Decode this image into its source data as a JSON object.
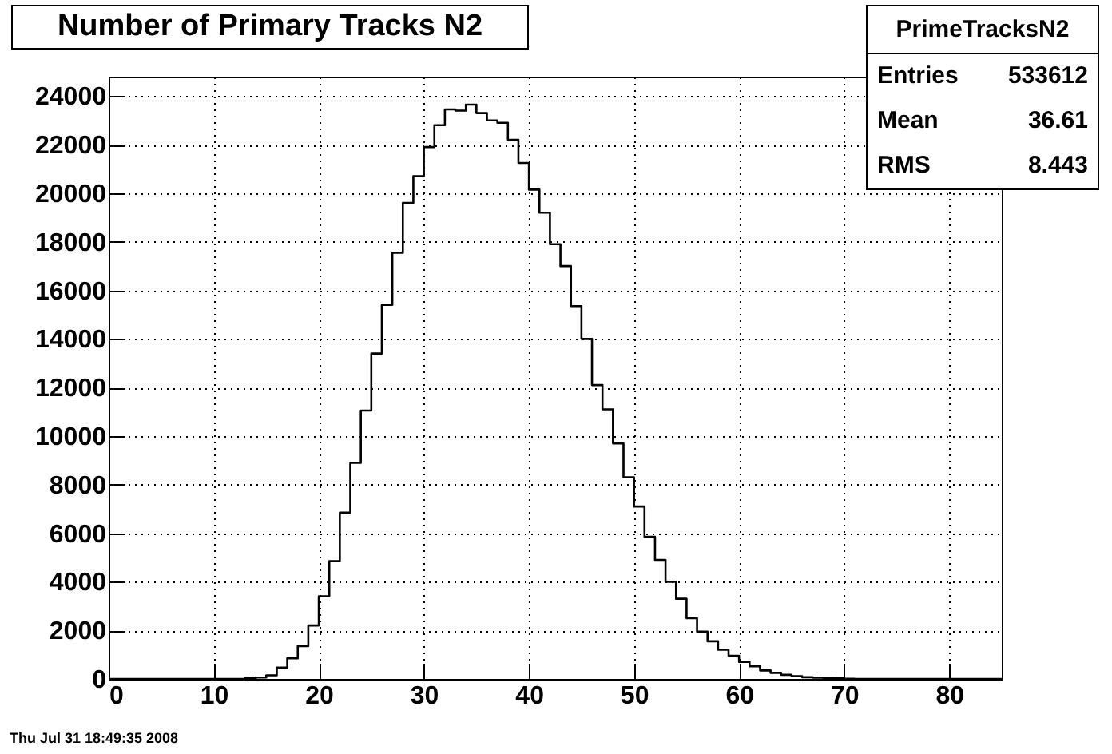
{
  "chart_data": {
    "type": "histogram",
    "title": "Number of Primary Tracks N2",
    "bins": [
      0,
      1,
      2,
      3,
      4,
      5,
      6,
      7,
      8,
      9,
      10,
      11,
      12,
      13,
      14,
      15,
      16,
      17,
      18,
      19,
      20,
      21,
      22,
      23,
      24,
      25,
      26,
      27,
      28,
      29,
      30,
      31,
      32,
      33,
      34,
      35,
      36,
      37,
      38,
      39,
      40,
      41,
      42,
      43,
      44,
      45,
      46,
      47,
      48,
      49,
      50,
      51,
      52,
      53,
      54,
      55,
      56,
      57,
      58,
      59,
      60,
      61,
      62,
      63,
      64,
      65,
      66,
      67,
      68,
      69,
      70,
      71,
      72,
      73,
      74,
      75,
      76,
      77,
      78,
      79,
      80,
      81,
      82,
      83,
      84,
      85
    ],
    "values": [
      0,
      0,
      0,
      0,
      0,
      0,
      0,
      0,
      0,
      0,
      0,
      0,
      0,
      30,
      60,
      150,
      470,
      850,
      1350,
      2200,
      3400,
      4850,
      6850,
      8900,
      11050,
      13400,
      15400,
      17550,
      19600,
      20700,
      21900,
      22800,
      23450,
      23400,
      23650,
      23300,
      23000,
      22900,
      22200,
      21250,
      20150,
      19200,
      17900,
      17000,
      15350,
      14000,
      12100,
      11100,
      9700,
      8300,
      7100,
      5850,
      4900,
      4000,
      3300,
      2500,
      1950,
      1550,
      1200,
      950,
      700,
      520,
      350,
      250,
      170,
      110,
      70,
      50,
      30,
      20,
      10,
      0,
      0,
      0,
      0,
      0,
      0,
      0,
      0,
      0,
      0,
      0,
      0,
      0,
      0
    ],
    "color": "#000000",
    "xlim": [
      0,
      85
    ],
    "xticks": [
      0,
      10,
      20,
      30,
      40,
      50,
      60,
      70,
      80
    ],
    "ylim": [
      0,
      24800
    ],
    "yticks": [
      0,
      2000,
      4000,
      6000,
      8000,
      10000,
      12000,
      14000,
      16000,
      18000,
      20000,
      22000,
      24000
    ],
    "grid": true,
    "annotations": [
      "PrimeTracksN2",
      "Entries",
      "533612",
      "Mean",
      "36.61",
      "RMS",
      "8.443",
      "Thu Jul 31 18:49:35 2008"
    ]
  }
}
